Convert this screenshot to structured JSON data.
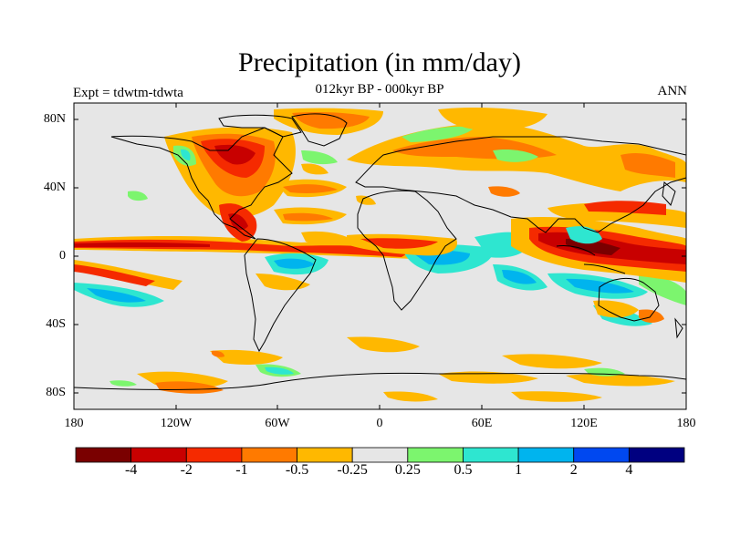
{
  "title": "Precipitation (in mm/day)",
  "subtitle": "012kyr BP - 000kyr BP",
  "left_label": "Expt = tdwtm-tdwta",
  "right_label": "ANN",
  "y_ticks": [
    "80N",
    "40N",
    "0",
    "40S",
    "80S"
  ],
  "x_ticks": [
    "180",
    "120W",
    "60W",
    "0",
    "60E",
    "120E",
    "180"
  ],
  "colorbar": {
    "colors": [
      "#7a0000",
      "#c80000",
      "#f52a00",
      "#ff7a00",
      "#ffb800",
      "#e6e6e6",
      "#7cf56e",
      "#2ee6d0",
      "#00b4ee",
      "#0048f0",
      "#000080"
    ],
    "labels": [
      "-4",
      "-2",
      "-1",
      "-0.5",
      "-0.25",
      "0.25",
      "0.5",
      "1",
      "2",
      "4"
    ]
  },
  "map": {
    "ocean_color": "#e6e6e6"
  }
}
